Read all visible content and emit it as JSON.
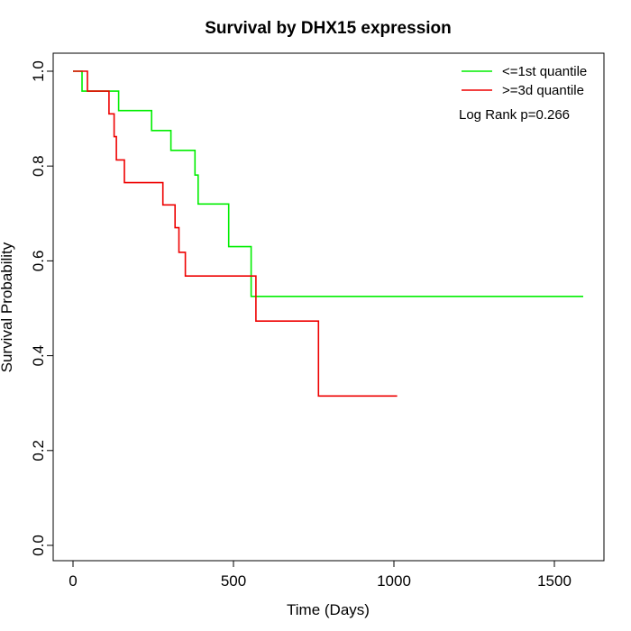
{
  "chart_data": {
    "type": "line",
    "step": true,
    "title": "Survival by DHX15 expression",
    "xlabel": "Time (Days)",
    "ylabel": "Survival Probability",
    "xlim": [
      0,
      1650
    ],
    "ylim": [
      0,
      1.0
    ],
    "xticks": [
      0,
      500,
      1000,
      1500
    ],
    "xtick_labels": [
      "0",
      "500",
      "1000",
      "1500"
    ],
    "yticks": [
      0.0,
      0.2,
      0.4,
      0.6,
      0.8,
      1.0
    ],
    "ytick_labels": [
      "0.0",
      "0.2",
      "0.4",
      "0.6",
      "0.8",
      "1.0"
    ],
    "grid": false,
    "legend_position": "top-right",
    "annotation": "Log Rank p=0.266",
    "series": [
      {
        "name": "<=1st quantile",
        "color": "#00ee00",
        "points": [
          [
            0,
            1.0
          ],
          [
            28,
            0.958
          ],
          [
            142,
            0.917
          ],
          [
            245,
            0.875
          ],
          [
            305,
            0.833
          ],
          [
            380,
            0.781
          ],
          [
            390,
            0.72
          ],
          [
            485,
            0.63
          ],
          [
            555,
            0.525
          ],
          [
            1590,
            0.525
          ]
        ]
      },
      {
        "name": ">=3d quantile",
        "color": "#ee0000",
        "points": [
          [
            0,
            1.0
          ],
          [
            45,
            0.958
          ],
          [
            112,
            0.91
          ],
          [
            128,
            0.862
          ],
          [
            135,
            0.813
          ],
          [
            160,
            0.765
          ],
          [
            280,
            0.718
          ],
          [
            318,
            0.67
          ],
          [
            330,
            0.618
          ],
          [
            350,
            0.568
          ],
          [
            570,
            0.473
          ],
          [
            765,
            0.315
          ],
          [
            1010,
            0.315
          ]
        ]
      }
    ]
  }
}
